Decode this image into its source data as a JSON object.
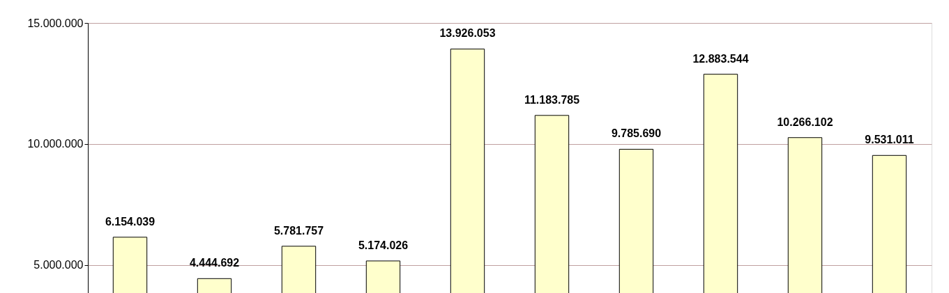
{
  "chart_data": {
    "type": "bar",
    "categories": [
      null,
      null,
      null,
      null,
      null,
      null,
      null,
      null,
      null,
      null
    ],
    "values": [
      6154039,
      4444692,
      5781757,
      5174026,
      13926053,
      11183785,
      9785690,
      12883544,
      10266102,
      9531011
    ],
    "value_labels": [
      "6.154.039",
      "4.444.692",
      "5.781.757",
      "5.174.026",
      "13.926.053",
      "11.183.785",
      "9.785.690",
      "12.883.544",
      "10.266.102",
      "9.531.011"
    ],
    "color": "#ffffcc",
    "ylim": [
      3850000,
      15000000
    ],
    "yticks": [
      {
        "value": 5000000,
        "label": "5.000.000"
      },
      {
        "value": 10000000,
        "label": "10.000.000"
      },
      {
        "value": 15000000,
        "label": "15.000.000"
      }
    ],
    "grid": "y",
    "tick_labels": "y"
  }
}
